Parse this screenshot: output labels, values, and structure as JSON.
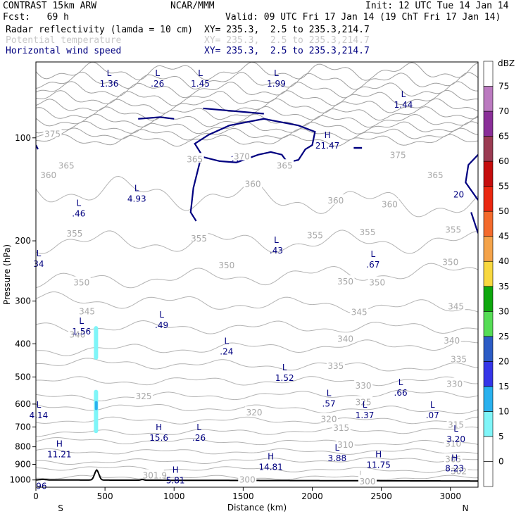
{
  "header": {
    "model": "CONTRAST 15km ARW",
    "center": "NCAR/MMM",
    "init": "Init: 12 UTC Tue 14 Jan 14",
    "fcst": "Fcst:   69 h",
    "valid": "Valid: 09 UTC Fri 17 Jan 14 (19 ChT Fri 17 Jan 14)",
    "fields": [
      {
        "name": "Radar reflectivity (lamda = 10 cm)",
        "xy": "XY= 235.3,  2.5 to 235.3,214.7",
        "color": "#000000"
      },
      {
        "name": "Potential temperature",
        "xy": "XY= 235.3,  2.5 to 235.3,214.7",
        "color": "#c8c8c8"
      },
      {
        "name": "Horizontal wind speed",
        "xy": "XY= 235.3,  2.5 to 235.3,214.7",
        "color": "#000080"
      }
    ]
  },
  "chart_data": {
    "type": "heatmap",
    "title": "",
    "xlabel": "Distance (km)",
    "ylabel": "Pressure (hPa)",
    "xlim": [
      0,
      3200
    ],
    "ylim": [
      1050,
      60
    ],
    "y_scale": "log",
    "x_ticks": [
      0,
      500,
      1000,
      1500,
      2000,
      2500,
      3000
    ],
    "y_ticks": [
      100,
      200,
      300,
      400,
      500,
      600,
      700,
      800,
      900,
      1000
    ],
    "x_end_labels": {
      "left": "S",
      "right": "N"
    },
    "colorbar": {
      "unit": "dBZ",
      "levels": [
        0,
        5,
        10,
        15,
        20,
        25,
        30,
        35,
        40,
        45,
        50,
        55,
        60,
        65,
        70,
        75
      ],
      "colors": [
        "#ffffff",
        "#ffffff",
        "#7ff5f8",
        "#29b1ee",
        "#3535e8",
        "#2b5bc5",
        "#55dc55",
        "#0da70d",
        "#f8d83f",
        "#f4a34a",
        "#f36a2c",
        "#ea2710",
        "#c50d0d",
        "#9b3b52",
        "#8a2e98",
        "#bb7ac0",
        "#ffffff"
      ]
    },
    "theta_labels": [
      {
        "x": 120,
        "p": 97,
        "v": "375"
      },
      {
        "x": 90,
        "p": 128,
        "v": "360"
      },
      {
        "x": 220,
        "p": 120,
        "v": "365"
      },
      {
        "x": 280,
        "p": 190,
        "v": "355"
      },
      {
        "x": 330,
        "p": 264,
        "v": "350"
      },
      {
        "x": 300,
        "p": 375,
        "v": "340"
      },
      {
        "x": 370,
        "p": 320,
        "v": "345"
      },
      {
        "x": 1180,
        "p": 196,
        "v": "355"
      },
      {
        "x": 1380,
        "p": 235,
        "v": "350"
      },
      {
        "x": 1150,
        "p": 115,
        "v": "365"
      },
      {
        "x": 1490,
        "p": 113,
        "v": "370"
      },
      {
        "x": 1570,
        "p": 136,
        "v": "360"
      },
      {
        "x": 1800,
        "p": 120,
        "v": "365"
      },
      {
        "x": 2170,
        "p": 152,
        "v": "360"
      },
      {
        "x": 2560,
        "p": 156,
        "v": "360"
      },
      {
        "x": 2620,
        "p": 112,
        "v": "375"
      },
      {
        "x": 2890,
        "p": 128,
        "v": "365"
      },
      {
        "x": 3020,
        "p": 185,
        "v": "355"
      },
      {
        "x": 2020,
        "p": 192,
        "v": "355"
      },
      {
        "x": 2400,
        "p": 188,
        "v": "355"
      },
      {
        "x": 2240,
        "p": 262,
        "v": "350"
      },
      {
        "x": 2470,
        "p": 264,
        "v": "350"
      },
      {
        "x": 3000,
        "p": 230,
        "v": "350"
      },
      {
        "x": 2340,
        "p": 322,
        "v": "345"
      },
      {
        "x": 3040,
        "p": 310,
        "v": "345"
      },
      {
        "x": 2240,
        "p": 385,
        "v": "340"
      },
      {
        "x": 3010,
        "p": 390,
        "v": "340"
      },
      {
        "x": 2170,
        "p": 463,
        "v": "335"
      },
      {
        "x": 3060,
        "p": 442,
        "v": "335"
      },
      {
        "x": 2370,
        "p": 528,
        "v": "330"
      },
      {
        "x": 3030,
        "p": 522,
        "v": "330"
      },
      {
        "x": 780,
        "p": 567,
        "v": "325"
      },
      {
        "x": 2370,
        "p": 590,
        "v": "325"
      },
      {
        "x": 1580,
        "p": 633,
        "v": "320"
      },
      {
        "x": 2120,
        "p": 661,
        "v": "320"
      },
      {
        "x": 2210,
        "p": 702,
        "v": "315"
      },
      {
        "x": 3040,
        "p": 687,
        "v": "315"
      },
      {
        "x": 2240,
        "p": 787,
        "v": "310"
      },
      {
        "x": 3020,
        "p": 780,
        "v": "310"
      },
      {
        "x": 3020,
        "p": 867,
        "v": "305"
      },
      {
        "x": 3060,
        "p": 940,
        "v": "302"
      },
      {
        "x": 860,
        "p": 966,
        "v": "301.9"
      },
      {
        "x": 1530,
        "p": 995,
        "v": "300"
      },
      {
        "x": 2400,
        "p": 1005,
        "v": "300"
      }
    ],
    "wind_labels": [
      {
        "x": 1450,
        "p": 115,
        "v": "20"
      },
      {
        "x": 3060,
        "p": 146,
        "v": "20"
      }
    ],
    "extrema": [
      {
        "x": 530,
        "p": 66,
        "t": "L",
        "v": "1.36"
      },
      {
        "x": 880,
        "p": 66,
        "t": "L",
        "v": ".26"
      },
      {
        "x": 1190,
        "p": 66,
        "t": "L",
        "v": "1.45"
      },
      {
        "x": 1740,
        "p": 66,
        "t": "L",
        "v": "1.99"
      },
      {
        "x": 2110,
        "p": 100,
        "t": "H",
        "v": "21.47"
      },
      {
        "x": 2660,
        "p": 76,
        "t": "L",
        "v": "1.44"
      },
      {
        "x": 730,
        "p": 143,
        "t": "L",
        "v": "4.93"
      },
      {
        "x": 310,
        "p": 158,
        "t": "L",
        "v": ".46"
      },
      {
        "x": 20,
        "p": 222,
        "t": "L",
        "v": "34"
      },
      {
        "x": 1740,
        "p": 203,
        "t": "L",
        "v": ".43"
      },
      {
        "x": 2440,
        "p": 223,
        "t": "L",
        "v": ".67"
      },
      {
        "x": 910,
        "p": 335,
        "t": "L",
        "v": ".49"
      },
      {
        "x": 330,
        "p": 350,
        "t": "L",
        "v": "1.56"
      },
      {
        "x": 1380,
        "p": 400,
        "t": "L",
        "v": ".24"
      },
      {
        "x": 1800,
        "p": 478,
        "t": "L",
        "v": "1.52"
      },
      {
        "x": 2640,
        "p": 528,
        "t": "L",
        "v": ".66"
      },
      {
        "x": 2120,
        "p": 568,
        "t": "L",
        "v": ".57"
      },
      {
        "x": 20,
        "p": 615,
        "t": "L",
        "v": "4.14"
      },
      {
        "x": 2380,
        "p": 615,
        "t": "L",
        "v": "1.37"
      },
      {
        "x": 2870,
        "p": 615,
        "t": "L",
        "v": ".07"
      },
      {
        "x": 890,
        "p": 715,
        "t": "H",
        "v": "15.6"
      },
      {
        "x": 1180,
        "p": 715,
        "t": "L",
        "v": ".26"
      },
      {
        "x": 3040,
        "p": 722,
        "t": "L",
        "v": "3.20"
      },
      {
        "x": 170,
        "p": 800,
        "t": "H",
        "v": "11.21"
      },
      {
        "x": 2180,
        "p": 820,
        "t": "L",
        "v": "3.88"
      },
      {
        "x": 2480,
        "p": 858,
        "t": "H",
        "v": "11.75"
      },
      {
        "x": 1700,
        "p": 870,
        "t": "H",
        "v": "14.81"
      },
      {
        "x": 3030,
        "p": 880,
        "t": "H",
        "v": "8.23"
      },
      {
        "x": 1010,
        "p": 952,
        "t": "H",
        "v": "5.81"
      },
      {
        "x": 40,
        "p": 990,
        "t": "",
        "v": "96"
      }
    ],
    "reflectivity": [
      {
        "x": 435,
        "p_top": 355,
        "p_bot": 445,
        "dbz": 7
      },
      {
        "x": 435,
        "p_top": 545,
        "p_bot": 730,
        "dbz": 7
      },
      {
        "x": 437,
        "p_top": 588,
        "p_bot": 625,
        "dbz": 12
      }
    ]
  }
}
